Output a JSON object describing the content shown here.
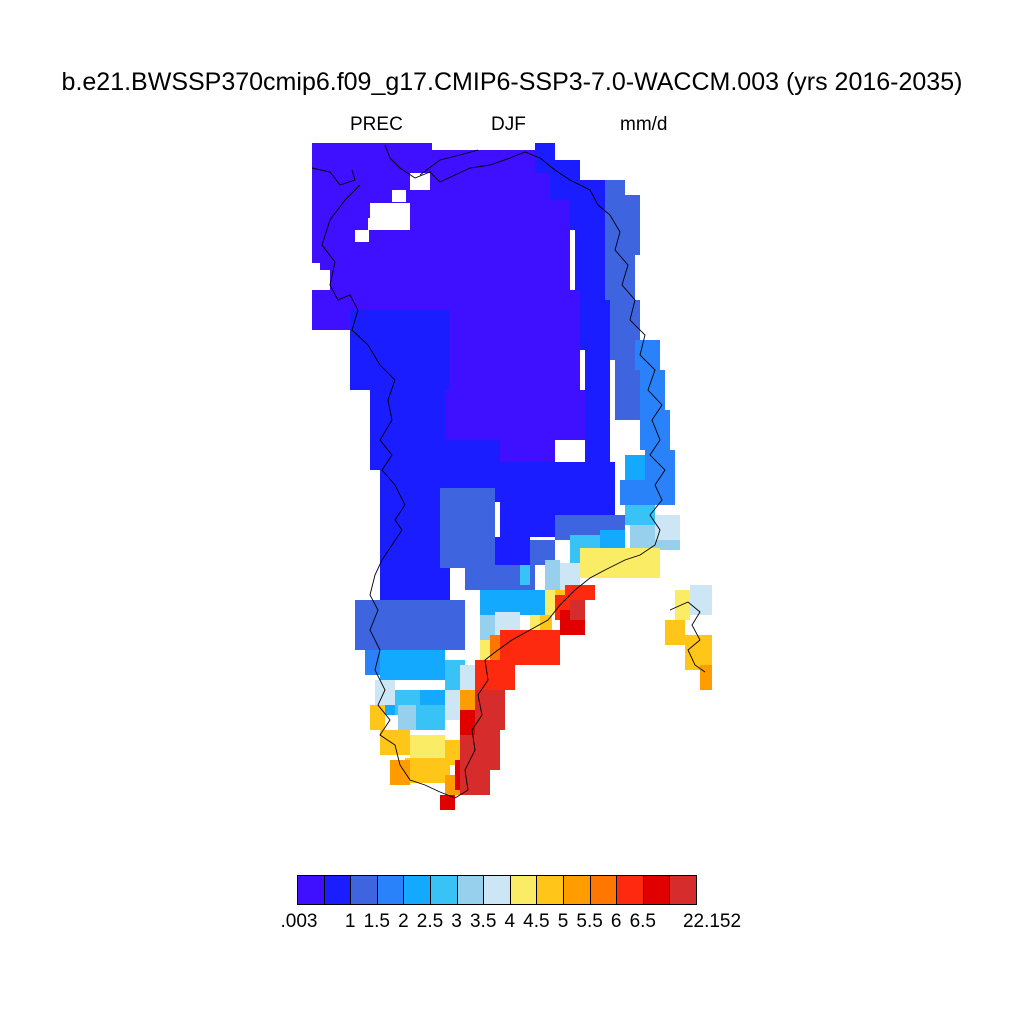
{
  "title": "b.e21.BWSSP370cmip6.f09_g17.CMIP6-SSP3-7.0-WACCM.003 (yrs 2016-2035)",
  "variable": "PREC",
  "season": "DJF",
  "units": "mm/d",
  "colorbar": {
    "colors": [
      "#3f0fff",
      "#1a1dff",
      "#3f64e0",
      "#2a82fb",
      "#12a9ff",
      "#39c2f5",
      "#96d0ec",
      "#cde6f5",
      "#fbec66",
      "#ffc619",
      "#ff9d00",
      "#ff7600",
      "#fd2a10",
      "#e00000",
      "#d62c2c"
    ],
    "labels": [
      ".003",
      "1",
      "1.5",
      "2",
      "2.5",
      "3",
      "3.5",
      "4",
      "4.5",
      "5",
      "5.5",
      "6",
      "6.5",
      "22.152"
    ]
  },
  "map_data": {
    "region": "Greenland",
    "field": "precipitation rate",
    "pattern": "low (<1 mm/d) over interior and north, increasing toward southeast coast with maxima 6.5-22 mm/d"
  }
}
